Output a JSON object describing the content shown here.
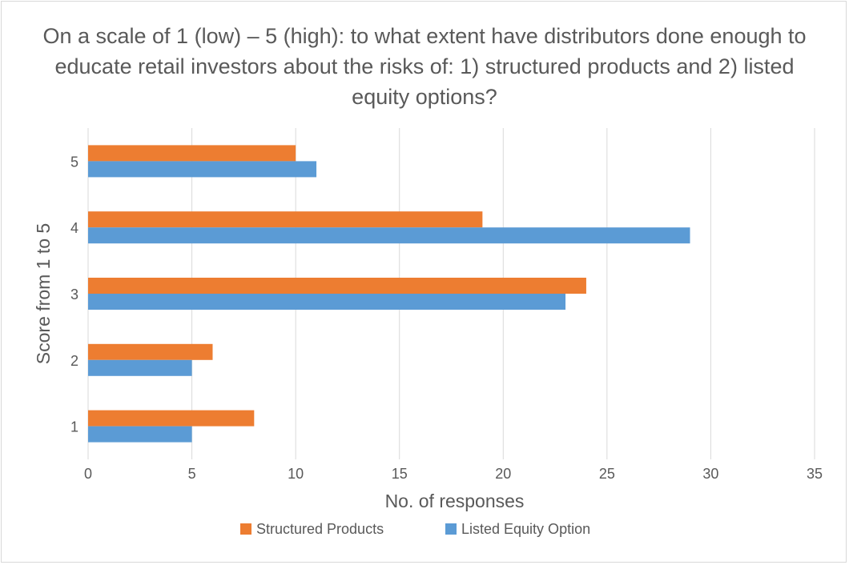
{
  "chart_data": {
    "type": "bar",
    "orientation": "horizontal",
    "title": "On a scale of 1 (low) – 5 (high): to what extent have distributors done enough to educate retail investors about the risks of: 1) structured products and 2) listed equity options?",
    "xlabel": "No. of responses",
    "ylabel": "Score from 1 to 5",
    "categories": [
      "1",
      "2",
      "3",
      "4",
      "5"
    ],
    "series": [
      {
        "name": "Structured Products",
        "color": "#ED7D31",
        "values": [
          8,
          6,
          24,
          19,
          10
        ]
      },
      {
        "name": "Listed Equity Option",
        "color": "#5B9BD5",
        "values": [
          5,
          5,
          23,
          29,
          11
        ]
      }
    ],
    "xlim": [
      0,
      35
    ],
    "xticks": [
      0,
      5,
      10,
      15,
      20,
      25,
      30,
      35
    ],
    "grid": true,
    "legend_position": "bottom"
  }
}
